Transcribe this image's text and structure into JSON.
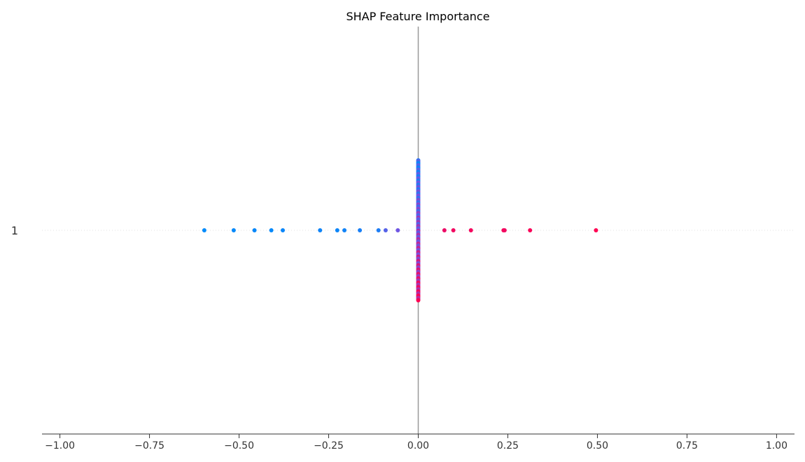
{
  "chart_data": {
    "type": "scatter",
    "title": "SHAP Feature Importance",
    "xlabel": "",
    "ylabel": "",
    "xlim": [
      -1.05,
      1.05
    ],
    "x_ticks": [
      -1.0,
      -0.75,
      -0.5,
      -0.25,
      0.0,
      0.25,
      0.5,
      0.75,
      1.0
    ],
    "x_tick_labels": [
      "−1.00",
      "−0.75",
      "−0.50",
      "−0.25",
      "0.00",
      "0.25",
      "0.50",
      "0.75",
      "1.00"
    ],
    "features": [
      "1"
    ],
    "zero_line": true,
    "colors": {
      "low": "#008bfb",
      "mid": "#7a4fe0",
      "high": "#ff0052",
      "zero_line": "#999999",
      "row_line": "#e0e0e0",
      "axis": "#333333"
    },
    "points": [
      {
        "x": -0.597,
        "level": 0.0
      },
      {
        "x": -0.515,
        "level": 0.02
      },
      {
        "x": -0.457,
        "level": 0.03
      },
      {
        "x": -0.41,
        "level": 0.02
      },
      {
        "x": -0.378,
        "level": 0.04
      },
      {
        "x": -0.274,
        "level": 0.06
      },
      {
        "x": -0.226,
        "level": 0.05
      },
      {
        "x": -0.206,
        "level": 0.07
      },
      {
        "x": -0.163,
        "level": 0.1
      },
      {
        "x": -0.111,
        "level": 0.12
      },
      {
        "x": -0.091,
        "level": 0.35
      },
      {
        "x": -0.057,
        "level": 0.45
      },
      {
        "x": 0.073,
        "level": 0.93
      },
      {
        "x": 0.098,
        "level": 0.95
      },
      {
        "x": 0.147,
        "level": 0.96
      },
      {
        "x": 0.238,
        "level": 0.97
      },
      {
        "x": 0.241,
        "level": 0.95
      },
      {
        "x": 0.312,
        "level": 0.98
      },
      {
        "x": 0.496,
        "level": 1.0
      }
    ],
    "zero_cluster_count": 120
  }
}
